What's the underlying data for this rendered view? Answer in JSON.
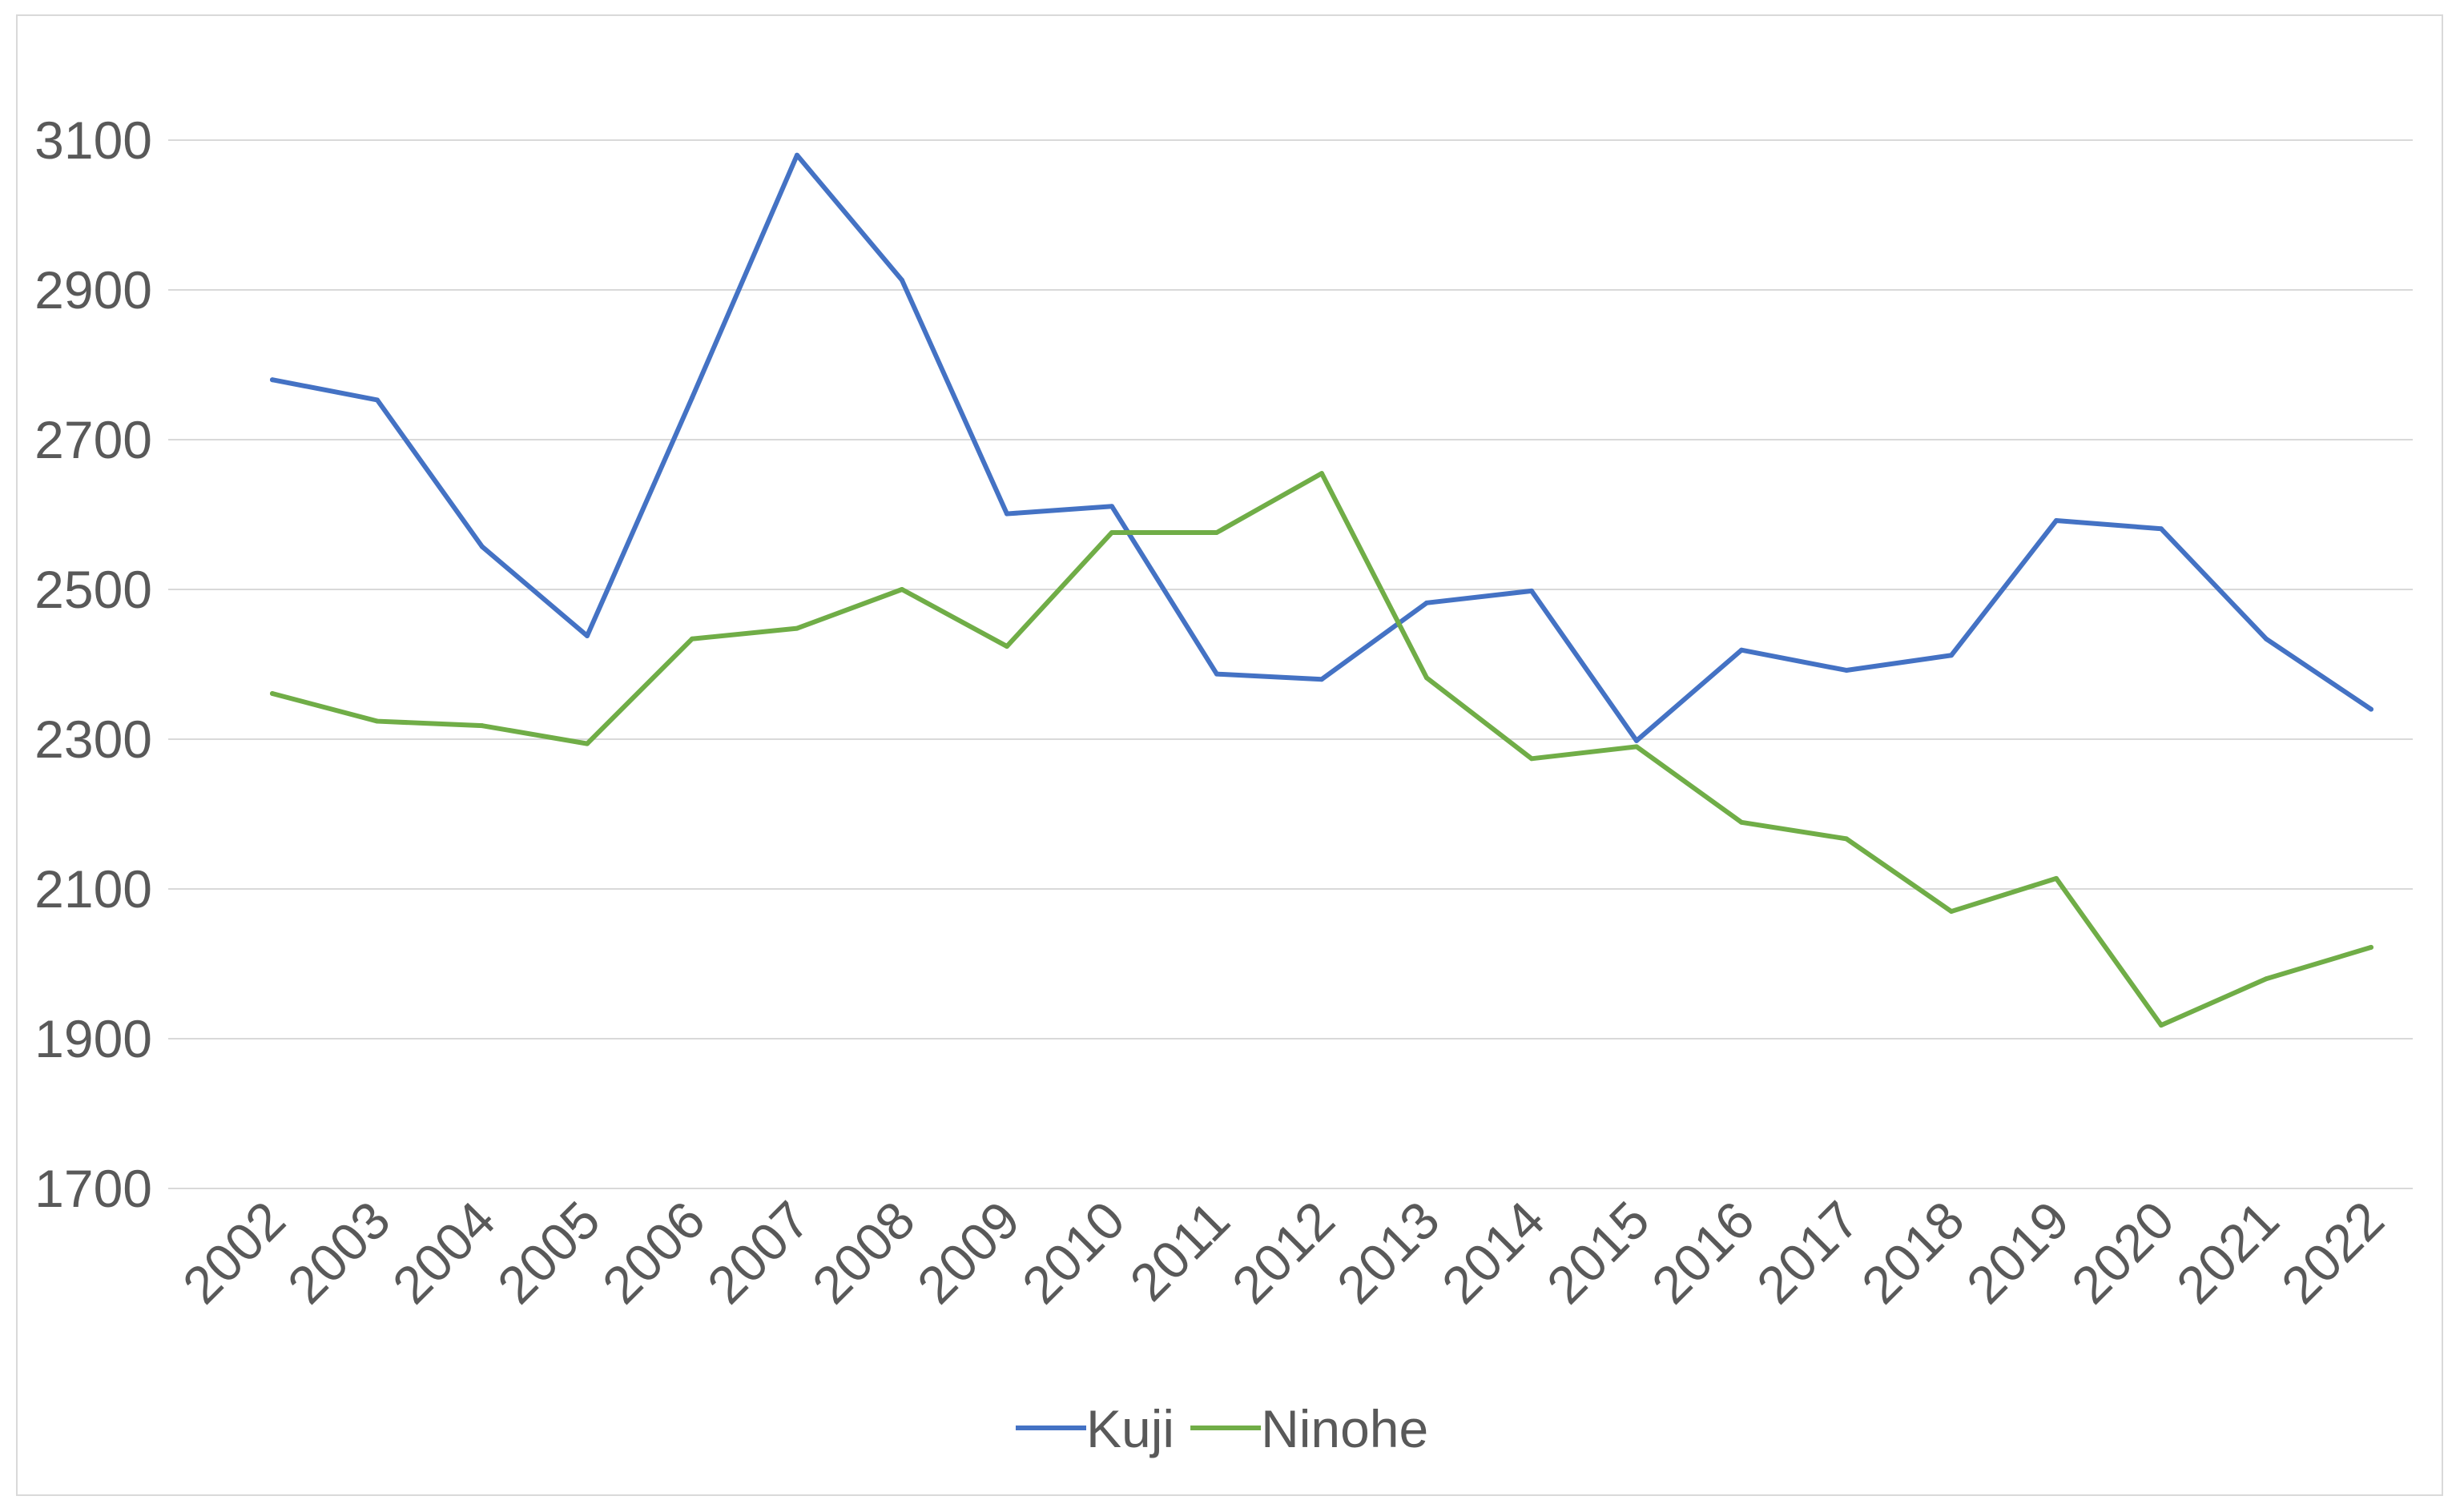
{
  "chart_data": {
    "type": "line",
    "title": "",
    "xlabel": "",
    "ylabel": "",
    "categories": [
      "2002",
      "2003",
      "2004",
      "2005",
      "2006",
      "2007",
      "2008",
      "2009",
      "2010",
      "2011",
      "2012",
      "2013",
      "2014",
      "2015",
      "2016",
      "2017",
      "2018",
      "2019",
      "2020",
      "2021",
      "2022"
    ],
    "ylim": [
      1700,
      3100
    ],
    "yticks": [
      1700,
      1900,
      2100,
      2300,
      2500,
      2700,
      2900,
      3100
    ],
    "grid": true,
    "legend_position": "bottom",
    "series": [
      {
        "name": "Kuji",
        "color": "#4472c4",
        "values": [
          2780,
          2753,
          2557,
          2438,
          2756,
          3080,
          2913,
          2601,
          2611,
          2387,
          2380,
          2482,
          2498,
          2298,
          2419,
          2392,
          2412,
          2592,
          2581,
          2434,
          2340
        ]
      },
      {
        "name": "Ninohe",
        "color": "#70ad47",
        "values": [
          2361,
          2324,
          2318,
          2294,
          2434,
          2448,
          2500,
          2424,
          2576,
          2576,
          2655,
          2382,
          2274,
          2290,
          2189,
          2167,
          2070,
          2114,
          1918,
          1980,
          2022
        ]
      }
    ]
  }
}
